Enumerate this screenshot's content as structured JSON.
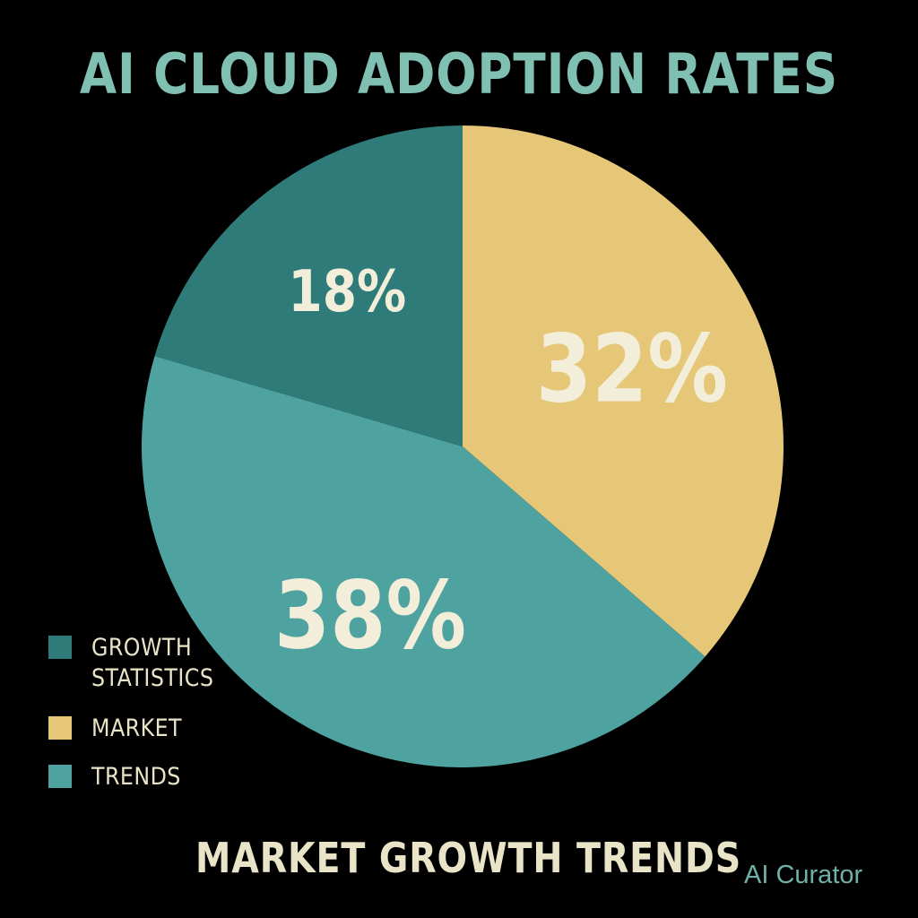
{
  "chart_data": {
    "type": "pie",
    "title": "AI CLOUD ADOPTION RATES",
    "subtitle": "MARKET GROWTH TRENDS",
    "slices": [
      {
        "label": "32%",
        "value": 32,
        "color": "#e6c677",
        "legend_index": 1
      },
      {
        "label": "38%",
        "value": 38,
        "color": "#4ea29f",
        "legend_index": 2
      },
      {
        "label": "18%",
        "value": 18,
        "color": "#2e7b7a",
        "legend_index": 0
      }
    ],
    "legend": [
      {
        "label": "GROWTH\nSTATISTICS",
        "color": "#2e7b7a"
      },
      {
        "label": "MARKET",
        "color": "#e6c677"
      },
      {
        "label": "TRENDS",
        "color": "#4ea29f"
      }
    ]
  },
  "colors": {
    "background": "#000000",
    "title": "#7fc0b3",
    "label_text": "#f3eed9",
    "legend_text": "#e9e4c8",
    "subtitle": "#e9e4c8",
    "watermark": "#6fb1a8"
  },
  "watermark": "AI Curator"
}
